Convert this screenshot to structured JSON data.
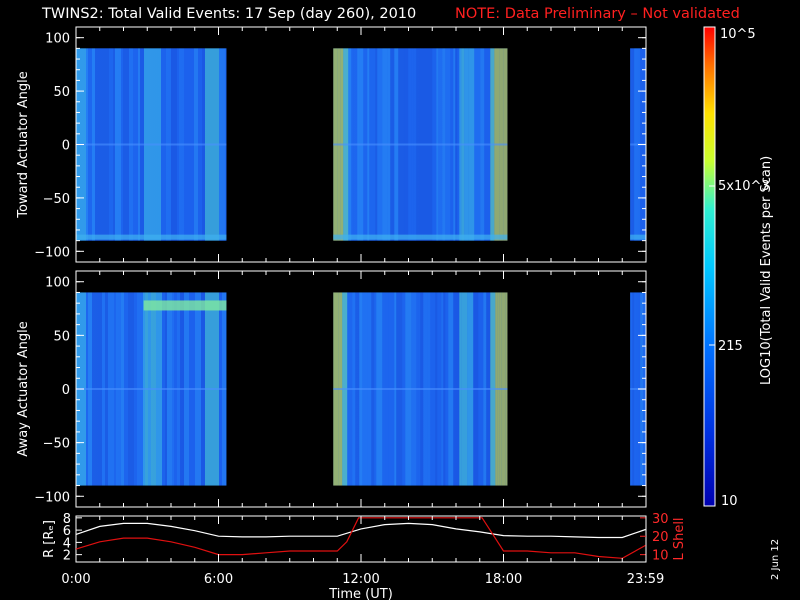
{
  "title_main": "TWINS2: Total Valid Events: 17 Sep (day 260), 2010",
  "title_note": "NOTE: Data Preliminary – Not validated",
  "datestamp": "2 Jun 12",
  "colors": {
    "note": "#ff2020",
    "r_line": "#ffffff",
    "lshell_line": "#e01010"
  },
  "chart_data": [
    {
      "type": "heatmap",
      "ylabel": "Toward Actuator Angle",
      "ylim": [
        -110,
        110
      ],
      "yticks": [
        -100,
        -50,
        0,
        50,
        100
      ],
      "x_segments_utc": [
        [
          "0:00",
          "6:20"
        ],
        [
          "10:50",
          "18:10"
        ],
        [
          "23:20",
          "23:59"
        ]
      ],
      "data_range_angle": [
        -90,
        90
      ]
    },
    {
      "type": "heatmap",
      "ylabel": "Away Actuator Angle",
      "ylim": [
        -110,
        110
      ],
      "yticks": [
        -100,
        -50,
        0,
        50,
        100
      ],
      "x_segments_utc": [
        [
          "0:00",
          "6:20"
        ],
        [
          "10:50",
          "18:10"
        ],
        [
          "23:20",
          "23:59"
        ]
      ],
      "data_range_angle": [
        -90,
        90
      ]
    },
    {
      "type": "line",
      "ylabel_left": "R [Rₑ]",
      "ylabel_right": "L Shell",
      "yticks_left": [
        2,
        4,
        6,
        8
      ],
      "yticks_right": [
        10,
        20,
        30
      ],
      "xlabel": "Time (UT)",
      "xticks": [
        "0:00",
        "6:00",
        "12:00",
        "18:00",
        "23:59"
      ],
      "series": [
        {
          "name": "R [Rₑ]",
          "axis": "left",
          "x_hours": [
            0,
            1,
            2,
            3,
            4,
            5,
            6,
            7,
            8,
            9,
            10,
            11,
            12,
            13,
            14,
            15,
            16,
            17,
            18,
            19,
            20,
            21,
            22,
            23,
            23.98
          ],
          "values": [
            5.3,
            6.6,
            7.1,
            7.1,
            6.6,
            5.9,
            5.0,
            4.9,
            4.9,
            5.0,
            5.0,
            5.0,
            6.2,
            6.9,
            7.1,
            6.9,
            6.2,
            5.7,
            5.1,
            5.0,
            5.0,
            4.9,
            4.8,
            4.8,
            6.1
          ]
        },
        {
          "name": "L Shell",
          "axis": "right",
          "x_hours": [
            0,
            1,
            2,
            3,
            4,
            5,
            6,
            7,
            8,
            9,
            10,
            11,
            11.4,
            11.9,
            17.1,
            17.6,
            18,
            19,
            20,
            21,
            22,
            23,
            23.98
          ],
          "values": [
            13,
            17,
            19,
            19,
            17,
            14,
            10,
            10,
            11,
            12,
            12,
            12,
            17,
            30,
            30,
            20,
            12,
            12,
            11,
            11,
            9,
            8,
            15
          ]
        }
      ]
    }
  ],
  "colorbar": {
    "label": "LOG10(Total Valid Events per Scan)",
    "tick_labels": [
      "10",
      "215",
      "5x10^3",
      "10^5"
    ],
    "range": [
      10,
      100000
    ],
    "scale": "log"
  }
}
